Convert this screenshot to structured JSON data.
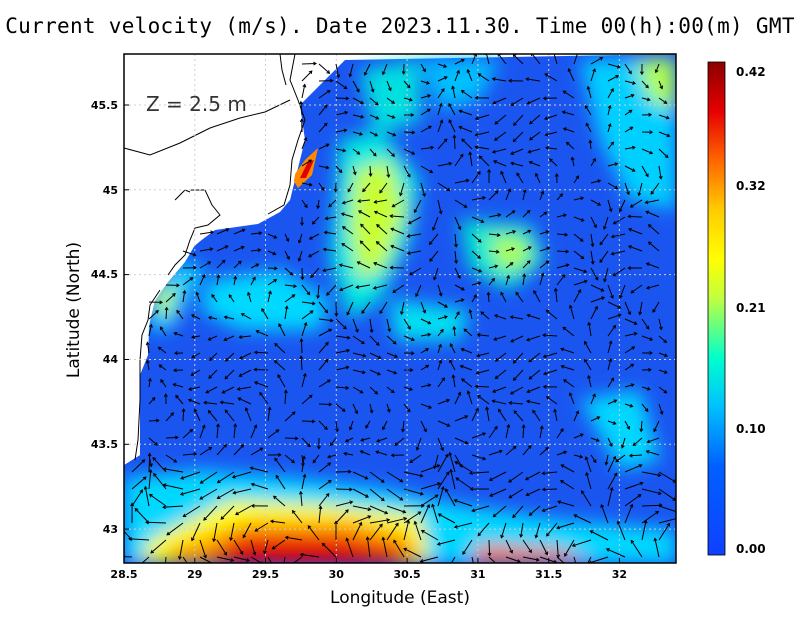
{
  "title": "Current velocity (m/s). Date 2023.11.30. Time 00(h):00(m) GMT",
  "depth_label": "Z = 2.5 m",
  "axes": {
    "xlabel": "Longitude (East)",
    "ylabel": "Latitude (North)",
    "xticks": [
      "28.5",
      "29",
      "29.5",
      "30",
      "30.5",
      "31",
      "31.5",
      "32"
    ],
    "yticks": [
      "43",
      "43.5",
      "44",
      "44.5",
      "45",
      "45.5"
    ]
  },
  "colorbar": {
    "min": 0.0,
    "max": 0.42,
    "tick_labels": [
      "0.42",
      "0.32",
      "0.21",
      "0.10",
      "0.00"
    ],
    "colors": [
      "#8b0000",
      "#e60000",
      "#ff6600",
      "#ffcc00",
      "#ffff00",
      "#c0ff40",
      "#00ffcc",
      "#00c0ff",
      "#0060ff",
      "#1040ff"
    ]
  },
  "chart_data": {
    "type": "heatmap",
    "title": "Current velocity (m/s). Date 2023.11.30. Time 00(h):00(m) GMT",
    "xlabel": "Longitude (East)",
    "ylabel": "Latitude (North)",
    "xlim": [
      28.5,
      32.4
    ],
    "ylim": [
      42.8,
      45.8
    ],
    "grid": true,
    "variable": "current speed (m/s) with velocity vectors",
    "depth": "Z = 2.5 m"
  }
}
